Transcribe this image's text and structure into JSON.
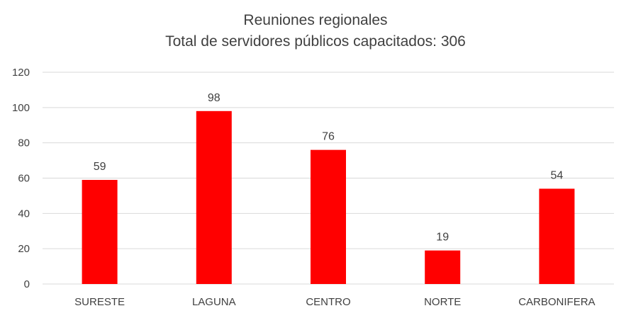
{
  "chart_data": {
    "type": "bar",
    "title": "Reuniones regionales",
    "subtitle": "Total de servidores públicos capacitados: 306",
    "categories": [
      "SURESTE",
      "LAGUNA",
      "CENTRO",
      "NORTE",
      "CARBONIFERA"
    ],
    "values": [
      59,
      98,
      76,
      19,
      54
    ],
    "data_labels": [
      "59",
      "98",
      "76",
      "19",
      "54"
    ],
    "yticks": [
      "0",
      "20",
      "40",
      "60",
      "80",
      "100",
      "120"
    ],
    "ylim": [
      0,
      120
    ],
    "ystep": 20,
    "xlabel": "",
    "ylabel": "",
    "grid": true,
    "legend": "none",
    "bar_color": "#ff0000",
    "grid_color": "#d9d9d9"
  }
}
